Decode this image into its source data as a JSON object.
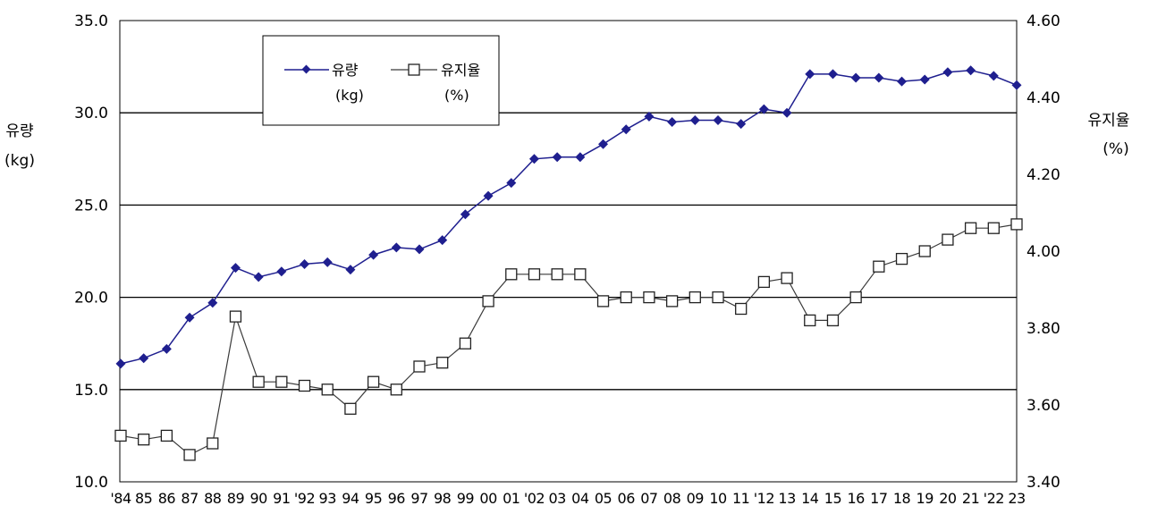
{
  "chart_data": {
    "type": "line",
    "x": [
      "'84",
      "85",
      "86",
      "87",
      "88",
      "89",
      "90",
      "91",
      "'92",
      "93",
      "94",
      "95",
      "96",
      "97",
      "98",
      "99",
      "00",
      "01",
      "'02",
      "03",
      "04",
      "05",
      "06",
      "07",
      "08",
      "09",
      "10",
      "11",
      "'12",
      "13",
      "14",
      "15",
      "16",
      "17",
      "18",
      "19",
      "20",
      "21",
      "'22",
      "23"
    ],
    "yLeft": {
      "label_line1": "유량",
      "label_line2": "(kg)",
      "lim": [
        10.0,
        35.0
      ],
      "ticks": [
        "10.0",
        "15.0",
        "20.0",
        "25.0",
        "30.0",
        "35.0"
      ]
    },
    "yRight": {
      "label_line1": "유지율",
      "label_line2": "(%)",
      "lim": [
        3.4,
        4.6
      ],
      "ticks": [
        "3.40",
        "3.60",
        "3.80",
        "4.00",
        "4.20",
        "4.40",
        "4.60"
      ]
    },
    "series": [
      {
        "name_line1": "유량",
        "name_line2": "(kg)",
        "axis": "left",
        "color": "#1f1f8f",
        "marker": "diamond",
        "values": [
          16.4,
          16.7,
          17.2,
          18.9,
          19.7,
          21.6,
          21.1,
          21.4,
          21.8,
          21.9,
          21.5,
          22.3,
          22.7,
          22.6,
          23.1,
          24.5,
          25.5,
          26.2,
          27.5,
          27.6,
          27.6,
          28.3,
          29.1,
          29.8,
          29.5,
          29.6,
          29.6,
          29.4,
          30.2,
          30.0,
          32.1,
          32.1,
          31.9,
          31.9,
          31.7,
          31.8,
          32.2,
          32.3,
          32.0,
          31.5
        ]
      },
      {
        "name_line1": "유지율",
        "name_line2": "(%)",
        "axis": "right",
        "color": "#3a3a3a",
        "marker": "square",
        "values": [
          3.52,
          3.51,
          3.52,
          3.47,
          3.5,
          3.83,
          3.66,
          3.66,
          3.65,
          3.64,
          3.59,
          3.66,
          3.64,
          3.7,
          3.71,
          3.76,
          3.87,
          3.94,
          3.94,
          3.94,
          3.94,
          3.87,
          3.88,
          3.88,
          3.87,
          3.88,
          3.88,
          3.85,
          3.92,
          3.93,
          3.82,
          3.82,
          3.88,
          3.96,
          3.98,
          4.0,
          4.03,
          4.06,
          4.06,
          4.07
        ]
      }
    ],
    "grid": "horizontal",
    "legend": "top-left"
  }
}
